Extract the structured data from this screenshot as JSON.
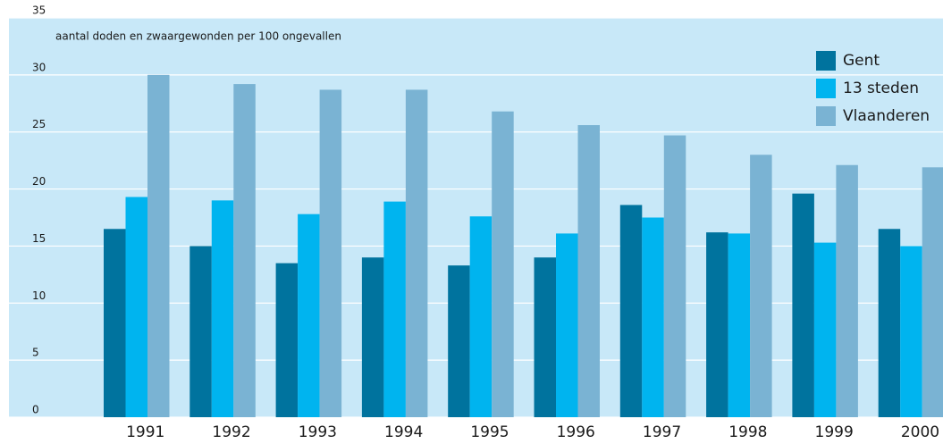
{
  "chart_data": {
    "type": "bar",
    "ylabel": "aantal doden en zwaargewonden per 100 ongevallen",
    "categories": [
      "1991",
      "1992",
      "1993",
      "1994",
      "1995",
      "1996",
      "1997",
      "1998",
      "1999",
      "2000"
    ],
    "series": [
      {
        "name": "Gent",
        "color": "#00739e",
        "values": [
          16.5,
          15,
          13.5,
          14,
          13.3,
          14,
          18.6,
          16.2,
          19.6,
          16.5
        ]
      },
      {
        "name": "13 steden",
        "color": "#00b4ef",
        "values": [
          19.3,
          19,
          17.8,
          18.9,
          17.6,
          16.1,
          17.5,
          16.1,
          15.3,
          15
        ]
      },
      {
        "name": "Vlaanderen",
        "color": "#7ab3d3",
        "values": [
          30,
          29.2,
          28.7,
          28.7,
          26.8,
          25.6,
          24.7,
          23,
          22.1,
          21.9
        ]
      }
    ],
    "ylim": [
      0,
      35
    ],
    "yticks": [
      0,
      5,
      10,
      15,
      20,
      25,
      30,
      35
    ],
    "grid": true,
    "legend": "top-right"
  }
}
